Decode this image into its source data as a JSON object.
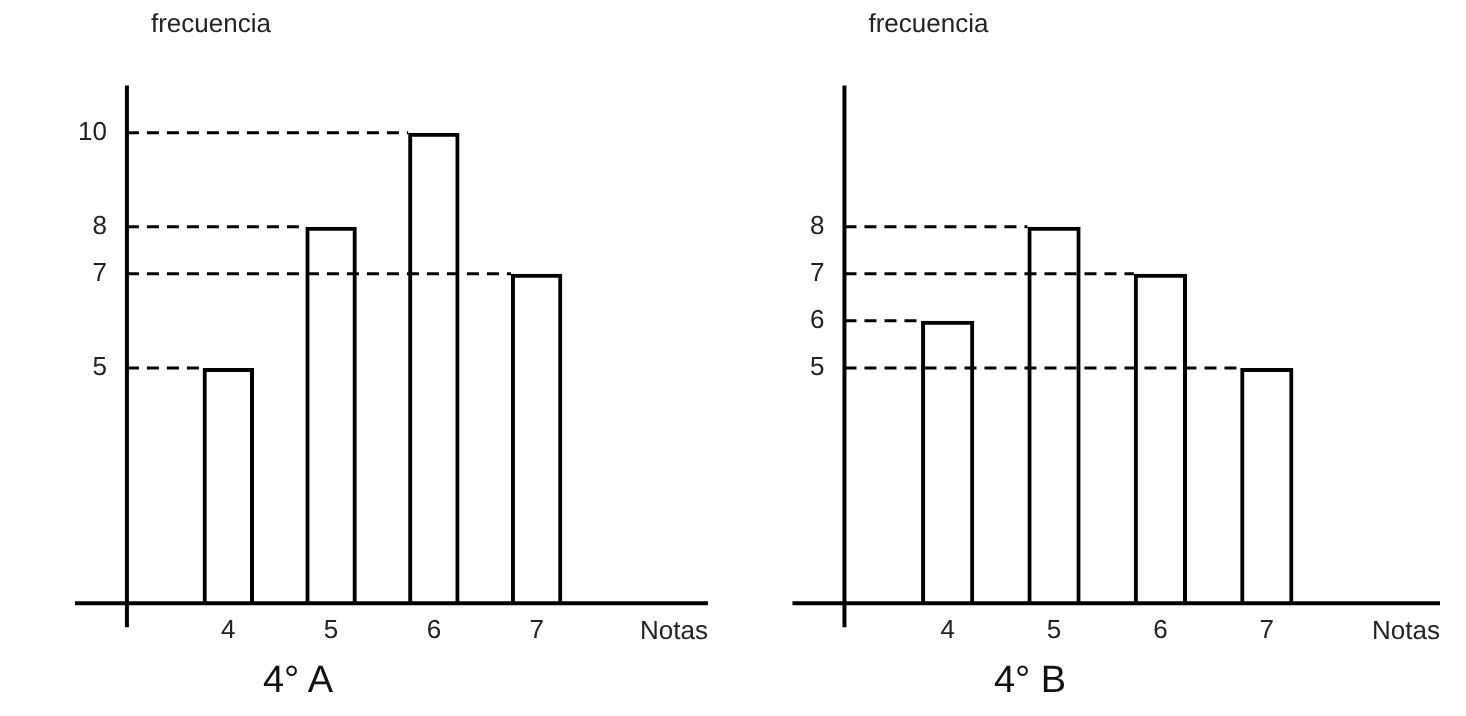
{
  "chart_data": [
    {
      "type": "bar",
      "title": "4° A",
      "xlabel": "Notas",
      "ylabel": "frecuencia",
      "categories": [
        "4",
        "5",
        "6",
        "7"
      ],
      "values": [
        5,
        8,
        10,
        7
      ],
      "color": "#000000",
      "ylim": [
        0,
        11
      ],
      "yticks": [
        5,
        7,
        8,
        10
      ],
      "grid": false,
      "legend": false,
      "ref_lines": [
        {
          "axis": "y",
          "value": 10,
          "line_style": "dashed"
        },
        {
          "axis": "y",
          "value": 8,
          "line_style": "dashed"
        },
        {
          "axis": "y",
          "value": 7,
          "line_style": "dashed"
        },
        {
          "axis": "y",
          "value": 5,
          "line_style": "dashed"
        }
      ]
    },
    {
      "type": "bar",
      "title": "4° B",
      "xlabel": "Notas",
      "ylabel": "frecuencia",
      "categories": [
        "4",
        "5",
        "6",
        "7"
      ],
      "values": [
        6,
        8,
        7,
        5
      ],
      "color": "#000000",
      "ylim": [
        0,
        11
      ],
      "yticks": [
        5,
        6,
        7,
        8
      ],
      "grid": false,
      "legend": false,
      "ref_lines": [
        {
          "axis": "y",
          "value": 8,
          "line_style": "dashed"
        },
        {
          "axis": "y",
          "value": 7,
          "line_style": "dashed"
        },
        {
          "axis": "y",
          "value": 6,
          "line_style": "dashed"
        },
        {
          "axis": "y",
          "value": 5,
          "line_style": "dashed"
        }
      ]
    }
  ]
}
